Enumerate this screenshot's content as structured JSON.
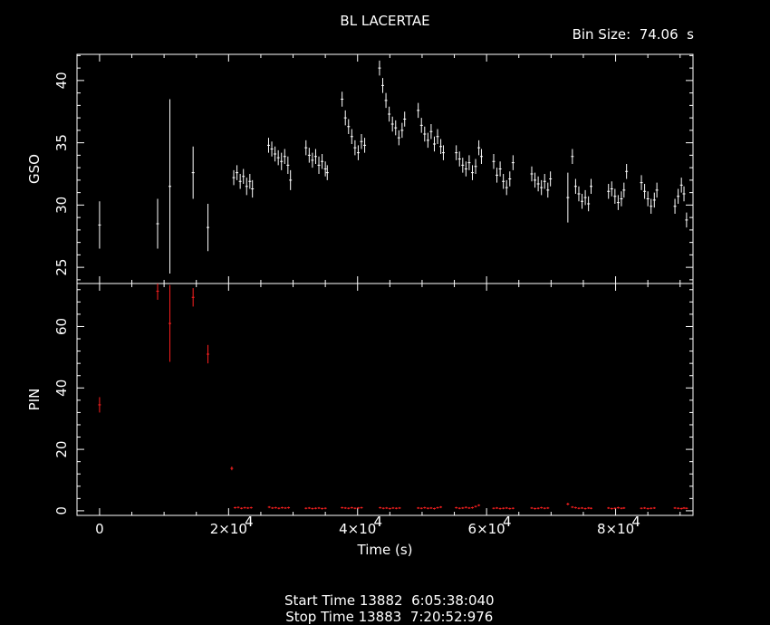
{
  "title": "BL LACERTAE",
  "bin_size": "Bin Size:  74.06  s",
  "footer": {
    "start": "Start Time 13882  6:05:38:040",
    "stop": "Stop Time 13883  7:20:52:976"
  },
  "colors": {
    "background": "#000000",
    "gso": "#ffffff",
    "pin": "#ff2020"
  },
  "chart_data": [
    {
      "type": "scatter",
      "title": "BL LACERTAE",
      "ylabel": "GSO",
      "xlabel": "",
      "xlim": [
        -3500,
        92000
      ],
      "ylim": [
        23.7,
        42.1
      ],
      "yticks": [
        25,
        30,
        35,
        40
      ],
      "ytick_labels": [
        "25",
        "30",
        "35",
        "40"
      ],
      "series": [
        {
          "points": [
            [
              0,
              28.4,
              1.9
            ],
            [
              9000,
              28.5,
              2.0
            ],
            [
              10900,
              31.5,
              7.0
            ],
            [
              14500,
              32.6,
              2.1
            ],
            [
              16800,
              28.2,
              1.9
            ],
            [
              20800,
              32.2,
              0.6
            ],
            [
              21300,
              32.6,
              0.6
            ],
            [
              21800,
              31.9,
              0.6
            ],
            [
              22300,
              32.3,
              0.6
            ],
            [
              22800,
              31.5,
              0.7
            ],
            [
              23300,
              31.9,
              0.6
            ],
            [
              23700,
              31.3,
              0.7
            ],
            [
              26200,
              34.8,
              0.6
            ],
            [
              26700,
              34.5,
              0.6
            ],
            [
              27200,
              34.1,
              0.6
            ],
            [
              27700,
              33.8,
              0.6
            ],
            [
              28200,
              33.5,
              0.7
            ],
            [
              28700,
              33.9,
              0.6
            ],
            [
              29200,
              33.2,
              0.7
            ],
            [
              29600,
              32.0,
              0.8
            ],
            [
              32000,
              34.6,
              0.6
            ],
            [
              32500,
              34.0,
              0.6
            ],
            [
              33000,
              33.6,
              0.6
            ],
            [
              33500,
              33.9,
              0.6
            ],
            [
              34000,
              33.2,
              0.7
            ],
            [
              34500,
              33.5,
              0.6
            ],
            [
              35000,
              32.9,
              0.6
            ],
            [
              35300,
              32.6,
              0.6
            ],
            [
              37600,
              38.5,
              0.6
            ],
            [
              38100,
              37.0,
              0.6
            ],
            [
              38600,
              36.3,
              0.6
            ],
            [
              39100,
              35.5,
              0.6
            ],
            [
              39600,
              34.6,
              0.6
            ],
            [
              40100,
              34.2,
              0.6
            ],
            [
              40600,
              35.1,
              0.6
            ],
            [
              41100,
              34.8,
              0.6
            ],
            [
              43400,
              41.0,
              0.6
            ],
            [
              43900,
              39.6,
              0.6
            ],
            [
              44400,
              38.4,
              0.6
            ],
            [
              44900,
              37.3,
              0.6
            ],
            [
              45400,
              36.5,
              0.6
            ],
            [
              45900,
              36.2,
              0.6
            ],
            [
              46400,
              35.4,
              0.6
            ],
            [
              46900,
              36.0,
              0.6
            ],
            [
              47300,
              36.9,
              0.6
            ],
            [
              49400,
              37.6,
              0.6
            ],
            [
              49900,
              36.4,
              0.6
            ],
            [
              50400,
              35.7,
              0.6
            ],
            [
              50900,
              35.2,
              0.6
            ],
            [
              51400,
              35.9,
              0.6
            ],
            [
              51900,
              34.9,
              0.6
            ],
            [
              52400,
              35.5,
              0.6
            ],
            [
              52900,
              34.7,
              0.6
            ],
            [
              53300,
              34.2,
              0.6
            ],
            [
              55300,
              34.2,
              0.6
            ],
            [
              55800,
              33.7,
              0.6
            ],
            [
              56300,
              33.2,
              0.6
            ],
            [
              56800,
              32.9,
              0.6
            ],
            [
              57300,
              33.4,
              0.6
            ],
            [
              57800,
              32.6,
              0.6
            ],
            [
              58300,
              33.1,
              0.6
            ],
            [
              58800,
              34.6,
              0.6
            ],
            [
              59200,
              33.9,
              0.6
            ],
            [
              61100,
              33.5,
              0.6
            ],
            [
              61600,
              32.4,
              0.6
            ],
            [
              62100,
              32.9,
              0.6
            ],
            [
              62600,
              31.9,
              0.6
            ],
            [
              63100,
              31.4,
              0.6
            ],
            [
              63600,
              32.1,
              0.6
            ],
            [
              64100,
              33.4,
              0.6
            ],
            [
              67000,
              32.5,
              0.6
            ],
            [
              67500,
              32.0,
              0.6
            ],
            [
              68000,
              31.7,
              0.6
            ],
            [
              68500,
              31.4,
              0.6
            ],
            [
              69000,
              31.9,
              0.6
            ],
            [
              69500,
              31.2,
              0.6
            ],
            [
              69900,
              32.1,
              0.6
            ],
            [
              72600,
              30.6,
              2.0
            ],
            [
              73300,
              33.9,
              0.6
            ],
            [
              73800,
              31.5,
              0.6
            ],
            [
              74300,
              30.9,
              0.6
            ],
            [
              74800,
              30.3,
              0.6
            ],
            [
              75300,
              30.6,
              0.6
            ],
            [
              75800,
              30.1,
              0.6
            ],
            [
              76200,
              31.5,
              0.6
            ],
            [
              78900,
              31.1,
              0.6
            ],
            [
              79400,
              31.3,
              0.6
            ],
            [
              79900,
              30.7,
              0.6
            ],
            [
              80400,
              30.2,
              0.6
            ],
            [
              80900,
              30.5,
              0.6
            ],
            [
              81300,
              31.2,
              0.6
            ],
            [
              81700,
              32.7,
              0.6
            ],
            [
              84000,
              31.8,
              0.6
            ],
            [
              84500,
              31.1,
              0.6
            ],
            [
              85000,
              30.5,
              0.6
            ],
            [
              85500,
              29.9,
              0.6
            ],
            [
              86000,
              30.4,
              0.6
            ],
            [
              86400,
              31.2,
              0.6
            ],
            [
              89200,
              29.9,
              0.6
            ],
            [
              89700,
              30.7,
              0.6
            ],
            [
              90200,
              31.6,
              0.6
            ],
            [
              90600,
              30.9,
              0.6
            ],
            [
              91000,
              28.8,
              0.6
            ]
          ]
        }
      ]
    },
    {
      "type": "scatter",
      "title": "",
      "ylabel": "PIN",
      "xlabel": "Time (s)",
      "xlim": [
        -3500,
        92000
      ],
      "ylim": [
        -1.5,
        74
      ],
      "yticks": [
        0,
        20,
        40,
        60
      ],
      "ytick_labels": [
        "0",
        "20",
        "40",
        "60"
      ],
      "xticks": [
        0,
        20000,
        40000,
        60000,
        80000
      ],
      "xtick_labels": [
        "0",
        "2×10",
        "4×10",
        "6×10",
        "8×10"
      ],
      "xtick_exponent": "4",
      "series": [
        {
          "points": [
            [
              0,
              34.5,
              2.5
            ],
            [
              9000,
              71.5,
              2.8
            ],
            [
              10900,
              61.0,
              12.5
            ],
            [
              14500,
              69.5,
              3.0
            ],
            [
              16800,
              51.0,
              3.0
            ],
            [
              20500,
              13.8,
              0.6
            ],
            [
              21000,
              1.0,
              0.3
            ],
            [
              21500,
              1.1,
              0.3
            ],
            [
              22000,
              0.8,
              0.3
            ],
            [
              22500,
              1.0,
              0.3
            ],
            [
              23000,
              0.9,
              0.3
            ],
            [
              23500,
              1.0,
              0.3
            ],
            [
              26300,
              1.2,
              0.3
            ],
            [
              26800,
              0.9,
              0.3
            ],
            [
              27300,
              1.0,
              0.3
            ],
            [
              27800,
              0.8,
              0.3
            ],
            [
              28300,
              1.0,
              0.3
            ],
            [
              28800,
              0.9,
              0.3
            ],
            [
              29300,
              1.0,
              0.3
            ],
            [
              32000,
              0.8,
              0.3
            ],
            [
              32500,
              0.9,
              0.3
            ],
            [
              33000,
              0.7,
              0.3
            ],
            [
              33500,
              0.8,
              0.3
            ],
            [
              34000,
              0.9,
              0.3
            ],
            [
              34500,
              0.7,
              0.3
            ],
            [
              35000,
              0.8,
              0.3
            ],
            [
              37600,
              1.0,
              0.3
            ],
            [
              38100,
              0.9,
              0.3
            ],
            [
              38600,
              0.8,
              0.3
            ],
            [
              39100,
              1.0,
              0.3
            ],
            [
              39600,
              0.8,
              0.3
            ],
            [
              40100,
              0.9,
              0.3
            ],
            [
              40600,
              1.0,
              0.3
            ],
            [
              43500,
              1.0,
              0.3
            ],
            [
              44000,
              0.8,
              0.3
            ],
            [
              44500,
              0.9,
              0.3
            ],
            [
              45000,
              0.7,
              0.3
            ],
            [
              45500,
              0.9,
              0.3
            ],
            [
              46000,
              0.8,
              0.3
            ],
            [
              46500,
              0.9,
              0.3
            ],
            [
              49400,
              0.9,
              0.3
            ],
            [
              49900,
              0.8,
              0.3
            ],
            [
              50400,
              1.0,
              0.3
            ],
            [
              50900,
              0.8,
              0.3
            ],
            [
              51400,
              0.9,
              0.3
            ],
            [
              51900,
              0.7,
              0.3
            ],
            [
              52400,
              1.0,
              0.3
            ],
            [
              52900,
              1.2,
              0.3
            ],
            [
              55300,
              1.0,
              0.3
            ],
            [
              55800,
              0.8,
              0.3
            ],
            [
              56300,
              0.9,
              0.3
            ],
            [
              56800,
              1.1,
              0.3
            ],
            [
              57300,
              0.9,
              0.3
            ],
            [
              57800,
              1.0,
              0.3
            ],
            [
              58300,
              1.4,
              0.3
            ],
            [
              58800,
              1.8,
              0.3
            ],
            [
              61100,
              0.8,
              0.3
            ],
            [
              61600,
              0.9,
              0.3
            ],
            [
              62100,
              0.7,
              0.3
            ],
            [
              62600,
              0.8,
              0.3
            ],
            [
              63100,
              0.9,
              0.3
            ],
            [
              63600,
              0.7,
              0.3
            ],
            [
              64100,
              0.8,
              0.3
            ],
            [
              67000,
              0.9,
              0.3
            ],
            [
              67500,
              0.7,
              0.3
            ],
            [
              68000,
              0.8,
              0.3
            ],
            [
              68500,
              1.0,
              0.3
            ],
            [
              69000,
              0.8,
              0.3
            ],
            [
              69500,
              0.9,
              0.3
            ],
            [
              72600,
              2.2,
              0.4
            ],
            [
              73300,
              1.2,
              0.3
            ],
            [
              73800,
              1.0,
              0.3
            ],
            [
              74300,
              0.8,
              0.3
            ],
            [
              74800,
              0.9,
              0.3
            ],
            [
              75300,
              0.7,
              0.3
            ],
            [
              75800,
              0.9,
              0.3
            ],
            [
              76200,
              0.8,
              0.3
            ],
            [
              78900,
              0.9,
              0.3
            ],
            [
              79400,
              0.7,
              0.3
            ],
            [
              79900,
              0.8,
              0.3
            ],
            [
              80400,
              1.0,
              0.3
            ],
            [
              80900,
              0.8,
              0.3
            ],
            [
              81300,
              0.9,
              0.3
            ],
            [
              84000,
              0.8,
              0.3
            ],
            [
              84500,
              0.9,
              0.3
            ],
            [
              85000,
              0.7,
              0.3
            ],
            [
              85500,
              0.8,
              0.3
            ],
            [
              86000,
              0.9,
              0.3
            ],
            [
              89200,
              0.9,
              0.3
            ],
            [
              89700,
              0.8,
              0.3
            ],
            [
              90200,
              0.7,
              0.3
            ],
            [
              90600,
              0.9,
              0.3
            ],
            [
              91000,
              0.8,
              0.3
            ]
          ]
        }
      ]
    }
  ]
}
